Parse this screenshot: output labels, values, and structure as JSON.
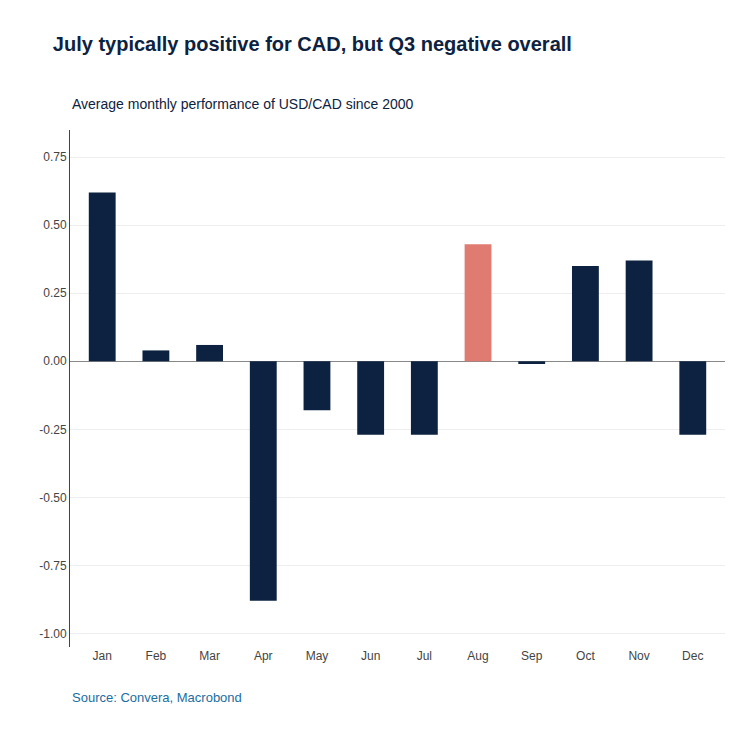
{
  "chart_data": {
    "type": "bar",
    "title": "July typically positive for CAD, but Q3 negative overall",
    "subtitle": "Average monthly performance of USD/CAD since 2000",
    "annotations": [
      "Source: Convera, Macrobond"
    ],
    "categories": [
      "Jan",
      "Feb",
      "Mar",
      "Apr",
      "May",
      "Jun",
      "Jul",
      "Aug",
      "Sep",
      "Oct",
      "Nov",
      "Dec"
    ],
    "values": [
      0.62,
      0.04,
      0.06,
      -0.88,
      -0.18,
      -0.27,
      -0.27,
      0.43,
      -0.01,
      0.35,
      0.37,
      -0.27
    ],
    "colors": [
      "#0d2240",
      "#0d2240",
      "#0d2240",
      "#0d2240",
      "#0d2240",
      "#0d2240",
      "#0d2240",
      "#e07b72",
      "#0d2240",
      "#0d2240",
      "#0d2240",
      "#0d2240"
    ],
    "ylim": [
      -1.05,
      0.85
    ],
    "yticks": [
      {
        "value": -1.0,
        "label": "-1.00"
      },
      -0.75,
      {
        "value": -0.5,
        "label": "-0.50"
      },
      -0.25,
      {
        "value": 0,
        "label": "0.00"
      },
      0.25,
      {
        "value": 0.5,
        "label": "0.50"
      },
      0.75
    ],
    "grid": true
  }
}
